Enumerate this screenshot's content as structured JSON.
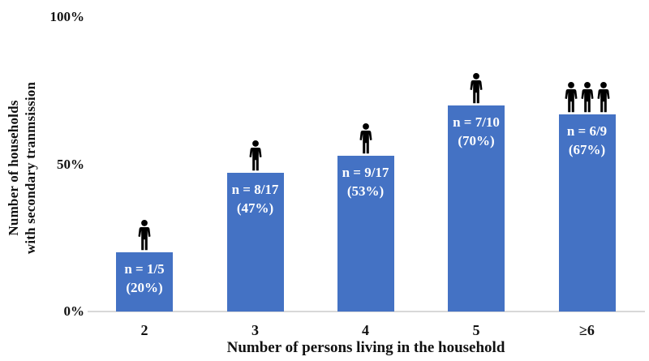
{
  "chart_data": {
    "type": "bar",
    "title": "",
    "xlabel": "Number of persons living in the household",
    "ylabel": "Number of households with secondary tranmsission",
    "ylabel_lines": [
      "Number of households",
      "with secondary tranmsission"
    ],
    "ylim": [
      0,
      100
    ],
    "yticks": [
      {
        "value": 0,
        "label": "0%"
      },
      {
        "value": 50,
        "label": "50%"
      },
      {
        "value": 100,
        "label": "100%"
      }
    ],
    "categories": [
      "2",
      "3",
      "4",
      "5",
      "≥6"
    ],
    "values": [
      20,
      47,
      53,
      70,
      67
    ],
    "bar_labels": [
      {
        "count": "n = 1/5",
        "pct": "(20%)"
      },
      {
        "count": "n = 8/17",
        "pct": "(47%)"
      },
      {
        "count": "n = 9/17",
        "pct": "(53%)"
      },
      {
        "count": "n = 7/10",
        "pct": "(70%)"
      },
      {
        "count": "n = 6/9",
        "pct": "(67%)"
      }
    ],
    "person_icons_per_bar": [
      1,
      1,
      1,
      1,
      3
    ],
    "grid": false,
    "legend": false,
    "colors": {
      "bar": "#4472C4",
      "bar_label_text": "#FFFFFF",
      "axis_text": "#111111",
      "axis_line": "#D8D8D8",
      "person_icon": "#000000"
    }
  }
}
